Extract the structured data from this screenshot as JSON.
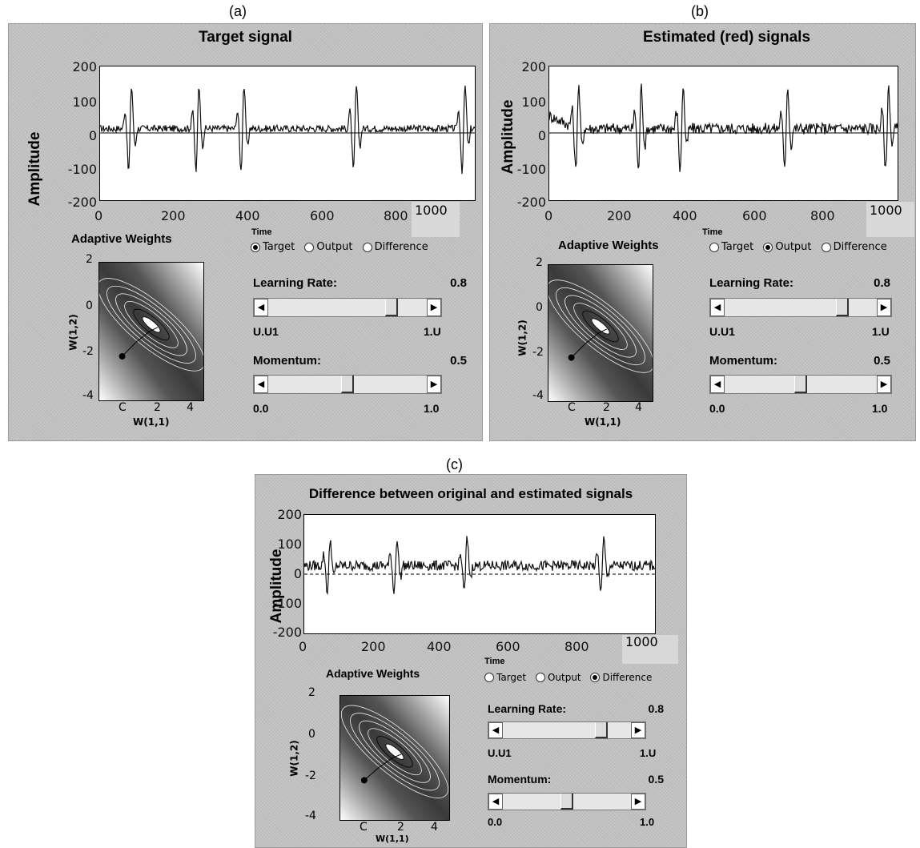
{
  "captions": {
    "a": "(a)",
    "b": "(b)",
    "c": "(c)"
  },
  "panels": [
    {
      "id": "a",
      "title": "Target signal",
      "ylabel": "Amplitude",
      "yticks": [
        "200",
        "100",
        "0",
        "-100",
        "-200"
      ],
      "xticks": [
        "0",
        "200",
        "400",
        "600",
        "800",
        "1000"
      ],
      "time_label": "Time",
      "weights_title": "Adaptive Weights",
      "weights_yticks": [
        "2",
        "0",
        "-2",
        "-4"
      ],
      "weights_xticks": [
        "C",
        "2",
        "4"
      ],
      "weights_xlabel": "W(1,1)",
      "weights_ylabel": "W(1,2)",
      "radios": [
        {
          "label": "Target",
          "selected": true
        },
        {
          "label": "Output",
          "selected": false
        },
        {
          "label": "Difference",
          "selected": false
        }
      ],
      "learning_rate": {
        "label": "Learning Rate:",
        "value_text": "0.8",
        "value": 0.8,
        "min_text": "U.U1",
        "max_text": "1.U"
      },
      "momentum": {
        "label": "Momentum:",
        "value_text": "0.5",
        "value": 0.5,
        "min_text": "0.0",
        "max_text": "1.0"
      }
    },
    {
      "id": "b",
      "title": "Estimated (red) signals",
      "ylabel": "Amplitude",
      "yticks": [
        "200",
        "100",
        "0",
        "-100",
        "-200"
      ],
      "xticks": [
        "0",
        "200",
        "400",
        "600",
        "800",
        "1000"
      ],
      "time_label": "Time",
      "weights_title": "Adaptive Weights",
      "weights_yticks": [
        "2",
        "0",
        "-2",
        "-4"
      ],
      "weights_xticks": [
        "C",
        "2",
        "4"
      ],
      "weights_xlabel": "W(1,1)",
      "weights_ylabel": "W(1,2)",
      "radios": [
        {
          "label": "Target",
          "selected": false
        },
        {
          "label": "Output",
          "selected": true
        },
        {
          "label": "Difference",
          "selected": false
        }
      ],
      "learning_rate": {
        "label": "Learning Rate:",
        "value_text": "0.8",
        "value": 0.8,
        "min_text": "U.U1",
        "max_text": "1.U"
      },
      "momentum": {
        "label": "Momentum:",
        "value_text": "0.5",
        "value": 0.5,
        "min_text": "0.0",
        "max_text": "1.0"
      }
    },
    {
      "id": "c",
      "title": "Difference between original and estimated signals",
      "ylabel": "Amplitude",
      "yticks": [
        "200",
        "100",
        "0",
        "-100",
        "-200"
      ],
      "xticks": [
        "0",
        "200",
        "400",
        "600",
        "800",
        "1000"
      ],
      "time_label": "Time",
      "weights_title": "Adaptive Weights",
      "weights_yticks": [
        "2",
        "0",
        "-2",
        "-4"
      ],
      "weights_xticks": [
        "C",
        "2",
        "4"
      ],
      "weights_xlabel": "W(1,1)",
      "weights_ylabel": "W(1,2)",
      "radios": [
        {
          "label": "Target",
          "selected": false
        },
        {
          "label": "Output",
          "selected": false
        },
        {
          "label": "Difference",
          "selected": true
        }
      ],
      "learning_rate": {
        "label": "Learning Rate:",
        "value_text": "0.8",
        "value": 0.8,
        "min_text": "U.U1",
        "max_text": "1.U"
      },
      "momentum": {
        "label": "Momentum:",
        "value_text": "0.5",
        "value": 0.5,
        "min_text": "0.0",
        "max_text": "1.0"
      }
    }
  ],
  "colors": {
    "panel_bg": "#c2c2c2",
    "plot_bg": "#ffffff",
    "trace": "#111111"
  }
}
